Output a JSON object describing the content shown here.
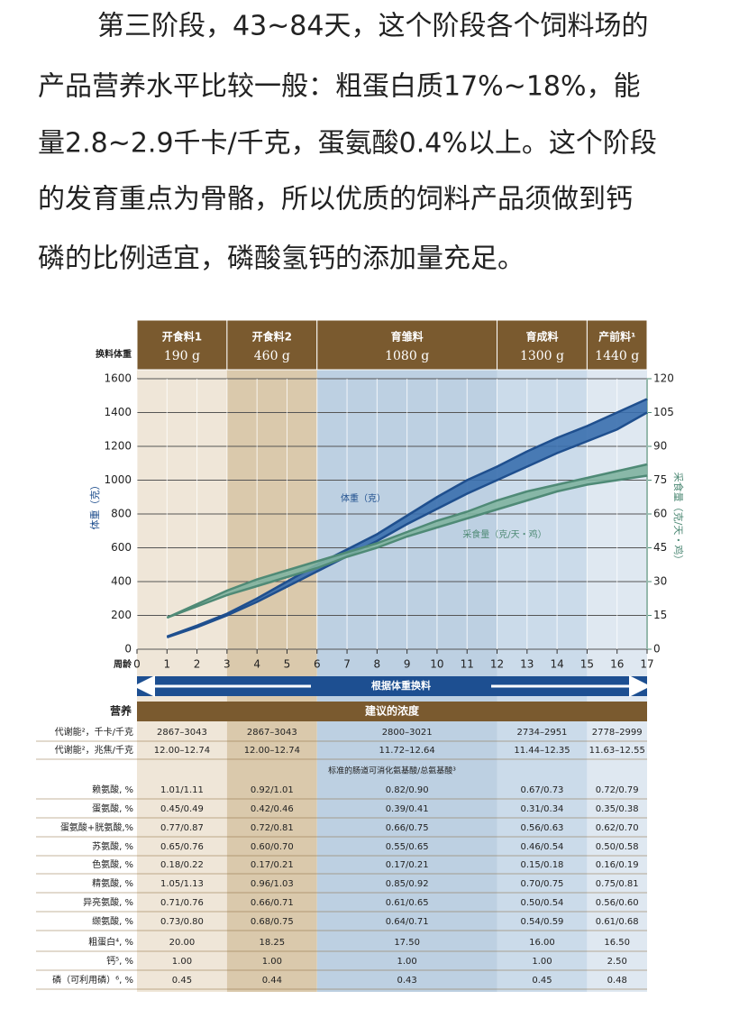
{
  "paragraph": [
    "第三阶段，43~84天，这个阶段各个饲料场的",
    "产品营养水平比较一般：粗蛋白质17%~18%，能",
    "量2.8~2.9千卡/千克，蛋氨酸0.4%以上。这个阶段",
    "的发育重点为骨骼，所以优质的饲料产品须做到钙",
    "磷的比例适宜，磷酸氢钙的添加量充足。"
  ],
  "chart_data": {
    "type": "line",
    "header_label": "换料体重",
    "phases": [
      {
        "name": "开食料1",
        "weight": "190 g",
        "weeks": [
          0,
          3
        ],
        "color": "#efe6d8"
      },
      {
        "name": "开食料2",
        "weight": "460 g",
        "weeks": [
          3,
          6
        ],
        "color": "#dac9ac"
      },
      {
        "name": "育雏料",
        "weight": "1080 g",
        "weeks": [
          6,
          12
        ],
        "color": "#bdd0e2"
      },
      {
        "name": "育成料",
        "weight": "1300 g",
        "weeks": [
          12,
          15
        ],
        "color": "#cbdbea"
      },
      {
        "name": "产前料¹",
        "weight": "1440 g",
        "weeks": [
          15,
          17
        ],
        "color": "#dfe8f1"
      }
    ],
    "x_label": "周龄",
    "xlim": [
      0,
      17
    ],
    "xticks": [
      0,
      1,
      2,
      3,
      4,
      5,
      6,
      7,
      8,
      9,
      10,
      11,
      12,
      13,
      14,
      15,
      16,
      17
    ],
    "y_label": "体重（克）",
    "ylim": [
      0,
      1600
    ],
    "yticks": [
      0,
      200,
      400,
      600,
      800,
      1000,
      1200,
      1400,
      1600
    ],
    "y2_label": "采食量（克/天・鸡）",
    "y2lim": [
      0,
      120
    ],
    "y2ticks": [
      0,
      15,
      30,
      45,
      60,
      75,
      90,
      105,
      120
    ],
    "grid": true,
    "x": [
      1,
      2,
      3,
      4,
      5,
      6,
      7,
      8,
      9,
      10,
      11,
      12,
      13,
      14,
      15,
      16,
      17
    ],
    "series": [
      {
        "name": "体重（克）",
        "color": "#1f4f8e",
        "fill": "#3a6fae",
        "low": [
          70,
          130,
          200,
          280,
          370,
          460,
          550,
          640,
          740,
          830,
          920,
          1000,
          1080,
          1160,
          1230,
          1300,
          1400
        ],
        "high": [
          75,
          140,
          210,
          300,
          400,
          500,
          590,
          680,
          790,
          900,
          1000,
          1080,
          1170,
          1250,
          1320,
          1400,
          1480
        ]
      },
      {
        "name": "采食量（克/天・鸡）",
        "color": "#4f8a76",
        "fill": "#7fb3a0",
        "axis": "y2",
        "low": [
          14,
          19,
          24,
          28,
          32,
          36,
          41,
          45,
          50,
          54,
          58,
          62,
          66,
          70,
          73,
          75,
          77
        ],
        "high": [
          14,
          20,
          26,
          31,
          35,
          39,
          43,
          47,
          52,
          57,
          61,
          66,
          70,
          73,
          76,
          79,
          82
        ]
      }
    ],
    "banner": "根据体重换料"
  },
  "table": {
    "header": [
      "营养",
      "建议的浓度"
    ],
    "energy_rows": [
      [
        "代谢能²，千卡/千克",
        "2867–3043",
        "2867–3043",
        "2800–3021",
        "2734–2951",
        "2778–2999"
      ],
      [
        "代谢能²，兆焦/千克",
        "12.00–12.74",
        "12.00–12.74",
        "11.72–12.64",
        "11.44–12.35",
        "11.63–12.55"
      ]
    ],
    "section": "标准的肠道可消化氨基酸/总氨基酸³",
    "amino_rows": [
      [
        "赖氨酸, %",
        "1.01/1.11",
        "0.92/1.01",
        "0.82/0.90",
        "0.67/0.73",
        "0.72/0.79"
      ],
      [
        "蛋氨酸, %",
        "0.45/0.49",
        "0.42/0.46",
        "0.39/0.41",
        "0.31/0.34",
        "0.35/0.38"
      ],
      [
        "蛋氨酸+胱氨酸,%",
        "0.77/0.87",
        "0.72/0.81",
        "0.66/0.75",
        "0.56/0.63",
        "0.62/0.70"
      ],
      [
        "苏氨酸, %",
        "0.65/0.76",
        "0.60/0.70",
        "0.55/0.65",
        "0.46/0.54",
        "0.50/0.58"
      ],
      [
        "色氨酸, %",
        "0.18/0.22",
        "0.17/0.21",
        "0.17/0.21",
        "0.15/0.18",
        "0.16/0.19"
      ],
      [
        "精氨酸, %",
        "1.05/1.13",
        "0.96/1.03",
        "0.85/0.92",
        "0.70/0.75",
        "0.75/0.81"
      ],
      [
        "异亮氨酸, %",
        "0.71/0.76",
        "0.66/0.71",
        "0.61/0.65",
        "0.50/0.54",
        "0.56/0.60"
      ],
      [
        "缬氨酸, %",
        "0.73/0.80",
        "0.68/0.75",
        "0.64/0.71",
        "0.54/0.59",
        "0.61/0.68"
      ]
    ],
    "other_rows": [
      [
        "粗蛋白⁴, %",
        "20.00",
        "18.25",
        "17.50",
        "16.00",
        "16.50"
      ],
      [
        "钙⁵, %",
        "1.00",
        "1.00",
        "1.00",
        "1.00",
        "2.50"
      ],
      [
        "磷（可利用磷）⁶, %",
        "0.45",
        "0.44",
        "0.43",
        "0.45",
        "0.48"
      ]
    ]
  }
}
